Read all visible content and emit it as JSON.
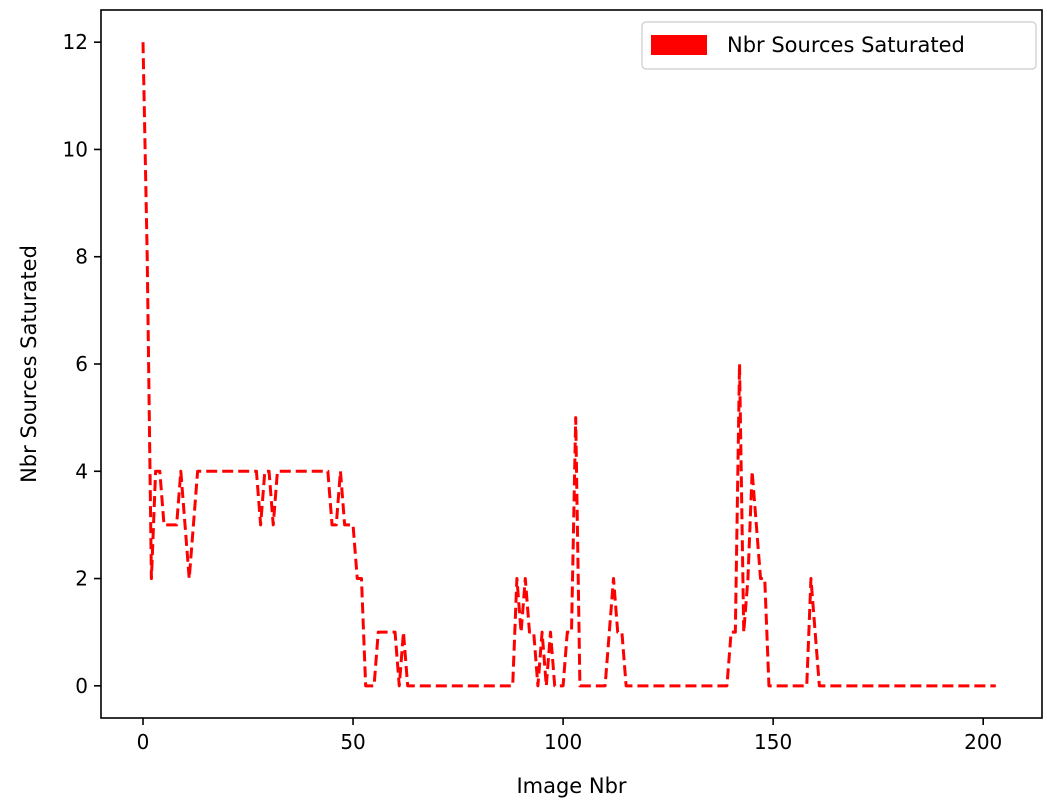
{
  "chart_data": {
    "type": "line",
    "title": "",
    "xlabel": "Image Nbr",
    "ylabel": "Nbr Sources Saturated",
    "xlim": [
      -10,
      214
    ],
    "ylim": [
      -0.6,
      12.6
    ],
    "xticks": [
      0,
      50,
      100,
      150,
      200
    ],
    "yticks": [
      0,
      2,
      4,
      6,
      8,
      10,
      12
    ],
    "grid": false,
    "legend_position": "top-right",
    "series": [
      {
        "name": "Nbr Sources Saturated",
        "color": "#ff0000",
        "line_style": "dashed",
        "x": [
          0,
          1,
          2,
          3,
          4,
          5,
          6,
          7,
          8,
          9,
          10,
          11,
          12,
          13,
          14,
          15,
          16,
          17,
          18,
          19,
          20,
          21,
          22,
          23,
          24,
          25,
          26,
          27,
          28,
          29,
          30,
          31,
          32,
          33,
          34,
          35,
          36,
          37,
          38,
          39,
          40,
          41,
          42,
          43,
          44,
          45,
          46,
          47,
          48,
          49,
          50,
          51,
          52,
          53,
          54,
          55,
          56,
          57,
          58,
          59,
          60,
          61,
          62,
          63,
          64,
          65,
          66,
          67,
          68,
          69,
          70,
          71,
          72,
          73,
          74,
          75,
          76,
          77,
          78,
          79,
          80,
          81,
          82,
          83,
          84,
          85,
          86,
          87,
          88,
          89,
          90,
          91,
          92,
          93,
          94,
          95,
          96,
          97,
          98,
          99,
          100,
          101,
          102,
          103,
          104,
          105,
          106,
          107,
          108,
          109,
          110,
          111,
          112,
          113,
          114,
          115,
          116,
          117,
          118,
          119,
          120,
          121,
          122,
          123,
          124,
          125,
          126,
          127,
          128,
          129,
          130,
          131,
          132,
          133,
          134,
          135,
          136,
          137,
          138,
          139,
          140,
          141,
          142,
          143,
          144,
          145,
          146,
          147,
          148,
          149,
          150,
          151,
          152,
          153,
          154,
          155,
          156,
          157,
          158,
          159,
          160,
          161,
          162,
          163,
          164,
          165,
          166,
          167,
          168,
          169,
          170,
          171,
          172,
          173,
          174,
          175,
          176,
          177,
          178,
          179,
          180,
          181,
          182,
          183,
          184,
          185,
          186,
          187,
          188,
          189,
          190,
          191,
          192,
          193,
          194,
          195,
          196,
          197,
          198,
          199,
          200,
          201,
          202,
          203
        ],
        "values": [
          12,
          8,
          2,
          4,
          4,
          3,
          3,
          3,
          3,
          4,
          3,
          2,
          3,
          4,
          4,
          4,
          4,
          4,
          4,
          4,
          4,
          4,
          4,
          4,
          4,
          4,
          4,
          4,
          3,
          4,
          4,
          3,
          4,
          4,
          4,
          4,
          4,
          4,
          4,
          4,
          4,
          4,
          4,
          4,
          4,
          3,
          3,
          4,
          3,
          3,
          3,
          2,
          2,
          0,
          0,
          0,
          1,
          1,
          1,
          1,
          1,
          0,
          1,
          0,
          0,
          0,
          0,
          0,
          0,
          0,
          0,
          0,
          0,
          0,
          0,
          0,
          0,
          0,
          0,
          0,
          0,
          0,
          0,
          0,
          0,
          0,
          0,
          0,
          0,
          2,
          1,
          2,
          1,
          1,
          0,
          1,
          0,
          1,
          0,
          0,
          0,
          1,
          1,
          5,
          0,
          0,
          0,
          0,
          0,
          0,
          0,
          1,
          2,
          1,
          1,
          0,
          0,
          0,
          0,
          0,
          0,
          0,
          0,
          0,
          0,
          0,
          0,
          0,
          0,
          0,
          0,
          0,
          0,
          0,
          0,
          0,
          0,
          0,
          0,
          0,
          1,
          1,
          6,
          1,
          2,
          4,
          3,
          2,
          2,
          0,
          0,
          0,
          0,
          0,
          0,
          0,
          0,
          0,
          0,
          2,
          1,
          0,
          0,
          0,
          0,
          0,
          0,
          0,
          0,
          0,
          0,
          0,
          0,
          0,
          0,
          0,
          0,
          0,
          0,
          0,
          0,
          0,
          0,
          0,
          0,
          0,
          0,
          0,
          0,
          0,
          0,
          0,
          0,
          0,
          0,
          0,
          0,
          0,
          0,
          0,
          0,
          0,
          0,
          0
        ]
      }
    ]
  }
}
